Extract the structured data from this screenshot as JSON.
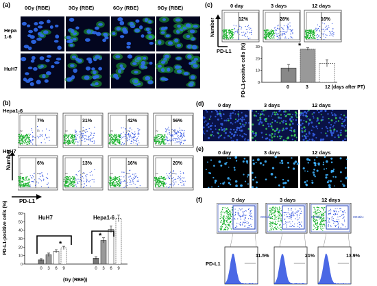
{
  "panel_a": {
    "letter": "(a)",
    "columns": [
      "0Gy (RBE)",
      "3Gy (RBE)",
      "6Gy (RBE)",
      "9Gy (RBE)"
    ],
    "rows": [
      "Hepa\n1-6",
      "HuH7"
    ]
  },
  "panel_b": {
    "letter": "(b)",
    "rows": [
      {
        "label": "Hepa1-6",
        "percents": [
          "7%",
          "31%",
          "42%",
          "56%"
        ]
      },
      {
        "label": "HuH7",
        "percents": [
          "6%",
          "13%",
          "16%",
          "20%"
        ]
      }
    ],
    "gate_labels": [
      "P2",
      "P3"
    ],
    "axis_y": "Number",
    "axis_x": "PD-L1"
  },
  "panel_b_chart": {
    "ylabel": "PD-L1-positive cells (%)",
    "xlabel": "(Gy (RBE))",
    "star": "*",
    "chart_data": {
      "type": "bar",
      "ylim": [
        0,
        60
      ],
      "yticks": [
        "0",
        "10",
        "20",
        "30",
        "40",
        "50",
        "60"
      ],
      "groups": [
        {
          "name": "HuH7",
          "categories": [
            "0",
            "3",
            "6",
            "9"
          ],
          "values": [
            5,
            11,
            15,
            19
          ],
          "errors": [
            1.5,
            2,
            2,
            2
          ]
        },
        {
          "name": "Hepa1-6",
          "categories": [
            "0",
            "3",
            "6",
            "9"
          ],
          "values": [
            7,
            28,
            41,
            54
          ],
          "errors": [
            1.5,
            3,
            4,
            4
          ]
        }
      ]
    }
  },
  "panel_c": {
    "letter": "(c)",
    "timepoints": [
      "0 day",
      "3 days",
      "12 days"
    ],
    "percents": [
      "12%",
      "28%",
      "16%"
    ],
    "axis_y": "Number",
    "axis_x": "PD-L1",
    "ylabel": "PD-L1-positive cells (%)",
    "star": "*",
    "chart_data": {
      "type": "bar",
      "categories": [
        "0",
        "3",
        "12 (days after PT)"
      ],
      "values": [
        12,
        28,
        16
      ],
      "errors": [
        3,
        1,
        3
      ],
      "ylim": [
        0,
        30
      ],
      "yticks": [
        "0",
        "10",
        "20",
        "30"
      ]
    }
  },
  "panel_d": {
    "letter": "(d)",
    "timepoints": [
      "0 day",
      "3 days",
      "12 days"
    ]
  },
  "panel_e": {
    "letter": "(e)",
    "timepoints": [
      "0 day",
      "3 days",
      "12 days"
    ]
  },
  "panel_f": {
    "letter": "(f)",
    "timepoints": [
      "0 day",
      "3 days",
      "12 days"
    ],
    "gate_label": "CD11b+",
    "row_label": "PD-L1",
    "percents": [
      "11.5%",
      "21%",
      "13.9%"
    ]
  }
}
